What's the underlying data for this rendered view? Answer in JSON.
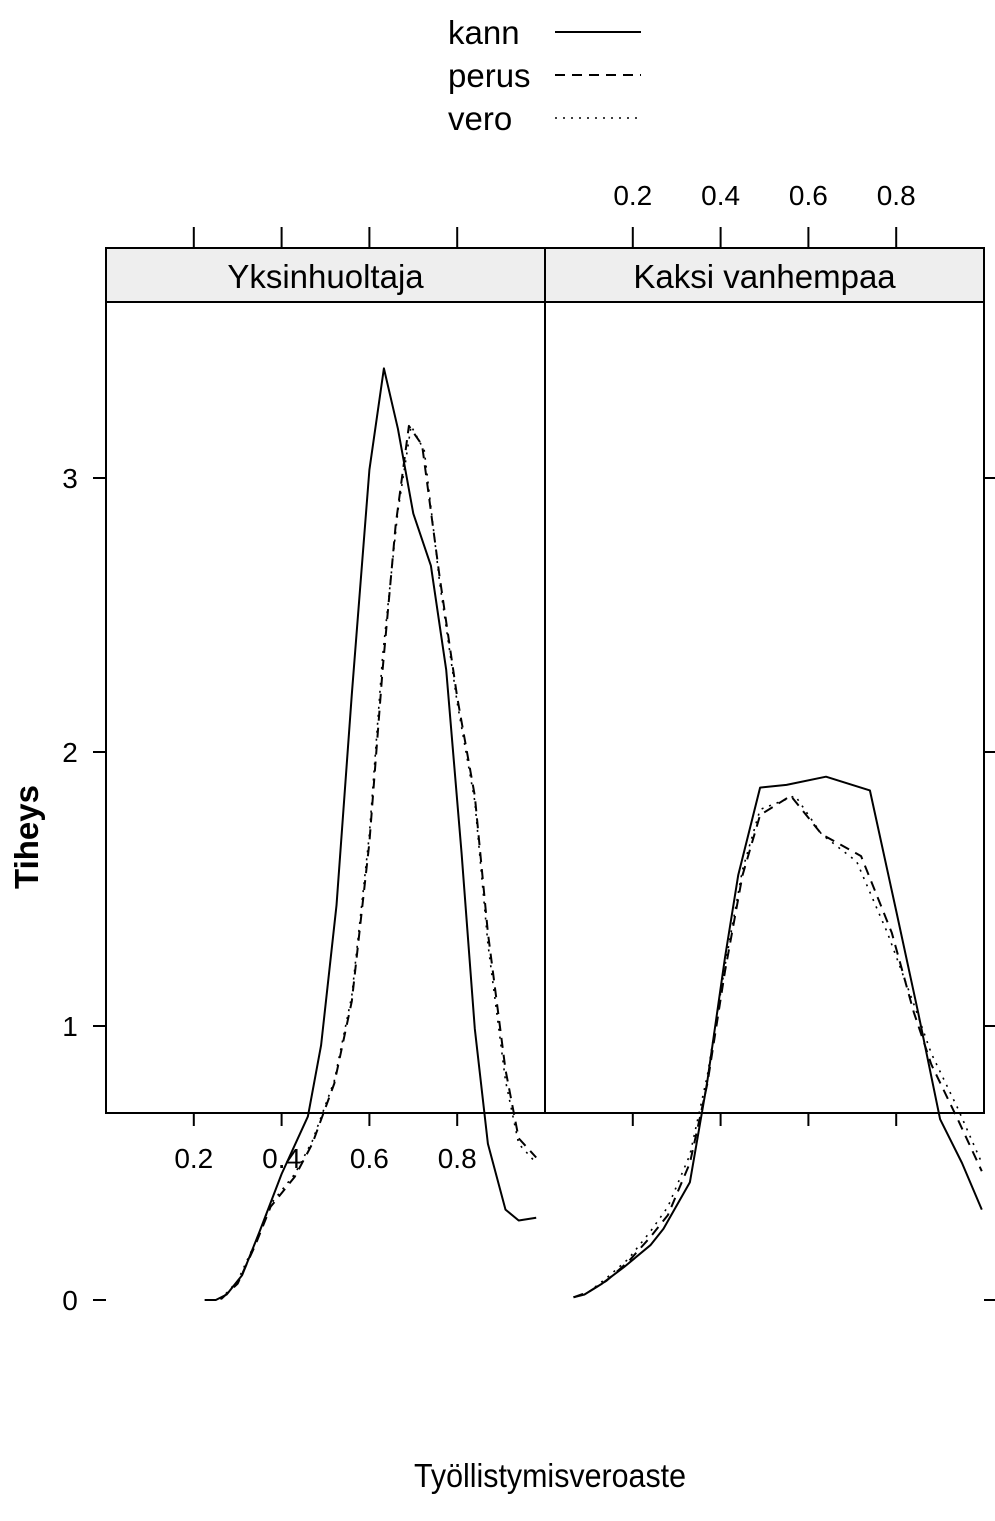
{
  "chart_data": {
    "type": "line",
    "layout": "two-panel trellis",
    "xlabel": "Työllistymisveroaste",
    "ylabel": "Tiheys",
    "xlim": [
      0.0,
      1.0
    ],
    "ylim": [
      -0.2,
      3.55
    ],
    "xticks": [
      0.2,
      0.4,
      0.6,
      0.8
    ],
    "yticks": [
      0,
      1,
      2,
      3
    ],
    "grid": false,
    "legend": {
      "placement": "top-center",
      "entries": [
        {
          "name": "kann",
          "line_style": "solid"
        },
        {
          "name": "perus",
          "line_style": "dashed"
        },
        {
          "name": "vero",
          "line_style": "dotted"
        }
      ]
    },
    "panels": [
      {
        "title": "Yksinhuoltaja",
        "series": [
          {
            "name": "kann",
            "points": [
              [
                0.225,
                0.0
              ],
              [
                0.25,
                0.0
              ],
              [
                0.275,
                0.02
              ],
              [
                0.31,
                0.09
              ],
              [
                0.35,
                0.25
              ],
              [
                0.4,
                0.46
              ],
              [
                0.46,
                0.67
              ],
              [
                0.49,
                0.93
              ],
              [
                0.525,
                1.44
              ],
              [
                0.56,
                2.21
              ],
              [
                0.6,
                3.03
              ],
              [
                0.633,
                3.4
              ],
              [
                0.665,
                3.18
              ],
              [
                0.7,
                2.87
              ],
              [
                0.74,
                2.68
              ],
              [
                0.775,
                2.3
              ],
              [
                0.81,
                1.63
              ],
              [
                0.84,
                0.99
              ],
              [
                0.87,
                0.57
              ],
              [
                0.91,
                0.33
              ],
              [
                0.94,
                0.29
              ],
              [
                0.98,
                0.3
              ]
            ]
          },
          {
            "name": "perus",
            "points": [
              [
                0.225,
                0.0
              ],
              [
                0.26,
                0.0
              ],
              [
                0.3,
                0.06
              ],
              [
                0.34,
                0.2
              ],
              [
                0.375,
                0.34
              ],
              [
                0.43,
                0.45
              ],
              [
                0.47,
                0.57
              ],
              [
                0.52,
                0.79
              ],
              [
                0.56,
                1.09
              ],
              [
                0.6,
                1.67
              ],
              [
                0.63,
                2.3
              ],
              [
                0.66,
                2.83
              ],
              [
                0.69,
                3.19
              ],
              [
                0.72,
                3.12
              ],
              [
                0.76,
                2.64
              ],
              [
                0.8,
                2.2
              ],
              [
                0.84,
                1.84
              ],
              [
                0.87,
                1.34
              ],
              [
                0.91,
                0.84
              ],
              [
                0.94,
                0.59
              ],
              [
                0.98,
                0.52
              ]
            ]
          },
          {
            "name": "vero",
            "points": [
              [
                0.225,
                0.0
              ],
              [
                0.26,
                0.0
              ],
              [
                0.3,
                0.07
              ],
              [
                0.34,
                0.21
              ],
              [
                0.375,
                0.35
              ],
              [
                0.43,
                0.46
              ],
              [
                0.47,
                0.58
              ],
              [
                0.52,
                0.8
              ],
              [
                0.56,
                1.11
              ],
              [
                0.6,
                1.7
              ],
              [
                0.63,
                2.35
              ],
              [
                0.665,
                2.88
              ],
              [
                0.695,
                3.19
              ],
              [
                0.725,
                3.1
              ],
              [
                0.76,
                2.62
              ],
              [
                0.8,
                2.18
              ],
              [
                0.84,
                1.82
              ],
              [
                0.87,
                1.3
              ],
              [
                0.91,
                0.8
              ],
              [
                0.94,
                0.57
              ],
              [
                0.98,
                0.5
              ]
            ]
          }
        ]
      },
      {
        "title": "Kaksi vanhempaa",
        "series": [
          {
            "name": "kann",
            "points": [
              [
                0.065,
                0.01
              ],
              [
                0.09,
                0.02
              ],
              [
                0.13,
                0.06
              ],
              [
                0.18,
                0.12
              ],
              [
                0.24,
                0.2
              ],
              [
                0.27,
                0.26
              ],
              [
                0.33,
                0.43
              ],
              [
                0.37,
                0.8
              ],
              [
                0.41,
                1.25
              ],
              [
                0.44,
                1.55
              ],
              [
                0.49,
                1.87
              ],
              [
                0.55,
                1.88
              ],
              [
                0.64,
                1.91
              ],
              [
                0.74,
                1.86
              ],
              [
                0.8,
                1.42
              ],
              [
                0.85,
                1.05
              ],
              [
                0.9,
                0.66
              ],
              [
                0.95,
                0.5
              ],
              [
                0.995,
                0.33
              ]
            ]
          },
          {
            "name": "perus",
            "points": [
              [
                0.065,
                0.01
              ],
              [
                0.1,
                0.03
              ],
              [
                0.14,
                0.07
              ],
              [
                0.19,
                0.14
              ],
              [
                0.24,
                0.23
              ],
              [
                0.28,
                0.31
              ],
              [
                0.33,
                0.5
              ],
              [
                0.37,
                0.79
              ],
              [
                0.41,
                1.2
              ],
              [
                0.45,
                1.55
              ],
              [
                0.49,
                1.77
              ],
              [
                0.56,
                1.84
              ],
              [
                0.63,
                1.7
              ],
              [
                0.72,
                1.62
              ],
              [
                0.79,
                1.34
              ],
              [
                0.84,
                1.05
              ],
              [
                0.88,
                0.86
              ],
              [
                0.94,
                0.66
              ],
              [
                0.995,
                0.47
              ]
            ]
          },
          {
            "name": "vero",
            "points": [
              [
                0.065,
                0.01
              ],
              [
                0.1,
                0.03
              ],
              [
                0.14,
                0.08
              ],
              [
                0.19,
                0.15
              ],
              [
                0.24,
                0.25
              ],
              [
                0.28,
                0.34
              ],
              [
                0.33,
                0.53
              ],
              [
                0.37,
                0.82
              ],
              [
                0.41,
                1.22
              ],
              [
                0.45,
                1.57
              ],
              [
                0.49,
                1.79
              ],
              [
                0.57,
                1.84
              ],
              [
                0.63,
                1.7
              ],
              [
                0.71,
                1.6
              ],
              [
                0.78,
                1.34
              ],
              [
                0.84,
                1.08
              ],
              [
                0.88,
                0.9
              ],
              [
                0.94,
                0.7
              ],
              [
                0.995,
                0.5
              ]
            ]
          }
        ]
      }
    ]
  }
}
